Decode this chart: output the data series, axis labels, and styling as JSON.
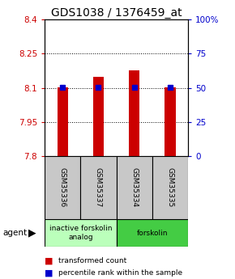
{
  "title": "GDS1038 / 1376459_at",
  "samples": [
    "GSM35336",
    "GSM35337",
    "GSM35334",
    "GSM35335"
  ],
  "red_values": [
    8.102,
    8.148,
    8.178,
    8.101
  ],
  "blue_values": [
    8.101,
    8.101,
    8.101,
    8.101
  ],
  "ylim_left": [
    7.8,
    8.4
  ],
  "yticks_left": [
    7.8,
    7.95,
    8.1,
    8.25,
    8.4
  ],
  "ytick_labels_left": [
    "7.8",
    "7.95",
    "8.1",
    "8.25",
    "8.4"
  ],
  "ylim_right": [
    0,
    100
  ],
  "yticks_right": [
    0,
    25,
    50,
    75,
    100
  ],
  "ytick_labels_right": [
    "0",
    "25",
    "50",
    "75",
    "100%"
  ],
  "bar_bottom": 7.8,
  "bar_color": "#cc0000",
  "marker_color": "#0000cc",
  "groups": [
    {
      "label": "inactive forskolin\nanalog",
      "samples": [
        0,
        1
      ],
      "color": "#bbffbb"
    },
    {
      "label": "forskolin",
      "samples": [
        2,
        3
      ],
      "color": "#44cc44"
    }
  ],
  "agent_label": "agent",
  "legend_red": "transformed count",
  "legend_blue": "percentile rank within the sample",
  "title_fontsize": 10,
  "tick_fontsize": 7.5,
  "background_color": "#ffffff",
  "plot_bg": "#ffffff",
  "left_tick_color": "#cc0000",
  "right_tick_color": "#0000cc",
  "bar_width": 0.3,
  "marker_size": 4
}
